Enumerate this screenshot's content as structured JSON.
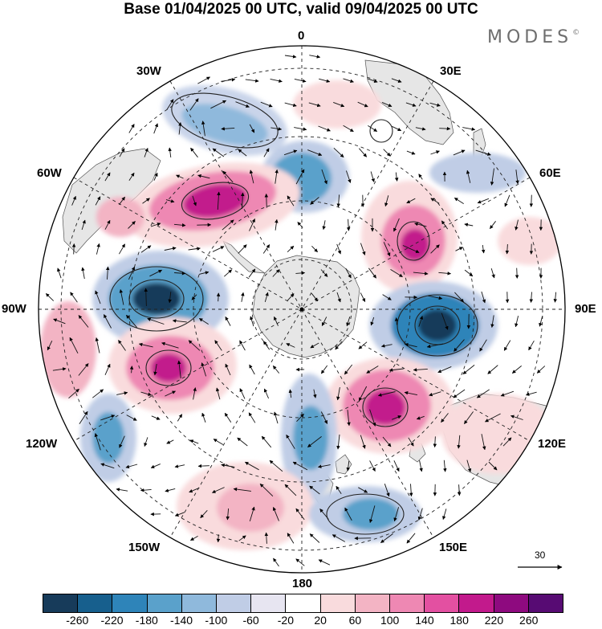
{
  "title": "Base 01/04/2025 00 UTC, valid 09/04/2025 00 UTC",
  "brand": {
    "name": "MODES",
    "mark": "©"
  },
  "projection": "south-polar-stereographic",
  "longitude_labels": {
    "lon_0": "0",
    "lon_30e": "30E",
    "lon_60e": "60E",
    "lon_90e": "90E",
    "lon_120e": "120E",
    "lon_150e": "150E",
    "lon_180": "180",
    "lon_150w": "150W",
    "lon_120w": "120W",
    "lon_90w": "90W",
    "lon_60w": "60W",
    "lon_30w": "30W"
  },
  "reference_vector": {
    "label": "30"
  },
  "colorbar": {
    "colors": [
      "#173b5a",
      "#175f8d",
      "#2e84b9",
      "#5aa1cb",
      "#8fb9dc",
      "#c0cde6",
      "#e7e5f1",
      "#ffffff",
      "#f9dbdd",
      "#f3b4c4",
      "#ee88b3",
      "#e350a1",
      "#c21a8c",
      "#8e0a7f",
      "#570b73"
    ],
    "ticks": [
      "-260",
      "-220",
      "-180",
      "-140",
      "-100",
      "-60",
      "-20",
      "20",
      "60",
      "100",
      "140",
      "180",
      "220",
      "260"
    ]
  },
  "colors": {
    "land": "#e6e6e6",
    "negative_strong": "#173b5a",
    "positive_strong": "#8e0a7f"
  }
}
